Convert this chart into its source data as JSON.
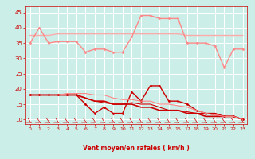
{
  "bg_color": "#cceee8",
  "grid_color": "#ffffff",
  "xlabel": "Vent moyen/en rafales ( km/h )",
  "xlabel_color": "#cc0000",
  "tick_color": "#cc0000",
  "xlim": [
    -0.5,
    23.5
  ],
  "ylim": [
    8.5,
    47
  ],
  "yticks": [
    10,
    15,
    20,
    25,
    30,
    35,
    40,
    45
  ],
  "xticks": [
    0,
    1,
    2,
    3,
    4,
    5,
    6,
    7,
    8,
    9,
    10,
    11,
    12,
    13,
    14,
    15,
    16,
    17,
    18,
    19,
    20,
    21,
    22,
    23
  ],
  "lines": [
    {
      "y": [
        37.5,
        37.5,
        37.5,
        38,
        38,
        38,
        38,
        38,
        38,
        38,
        38,
        38,
        38,
        38,
        38,
        38,
        38,
        37.5,
        37.5,
        37.5,
        37.5,
        37.5,
        37.5,
        37.5
      ],
      "color": "#ffaaaa",
      "lw": 1.0,
      "marker": null
    },
    {
      "y": [
        35,
        40,
        35,
        35.5,
        35.5,
        35.5,
        32,
        33,
        33,
        32,
        32,
        37,
        44,
        44,
        43,
        43,
        43,
        35,
        35,
        35,
        34,
        27,
        33,
        33
      ],
      "color": "#ff8888",
      "lw": 1.0,
      "marker": "D",
      "ms": 1.5
    },
    {
      "y": [
        18,
        18,
        18,
        18,
        18,
        18,
        15,
        12,
        14,
        12,
        12,
        19,
        16,
        21,
        21,
        16,
        16,
        15,
        13,
        12,
        12,
        11,
        11,
        10
      ],
      "color": "#cc0000",
      "lw": 1.0,
      "marker": "D",
      "ms": 1.5
    },
    {
      "y": [
        18,
        18,
        18,
        18,
        18,
        18,
        17,
        16,
        16,
        15,
        15,
        15,
        14,
        14,
        13,
        13,
        13,
        12,
        12,
        11,
        11,
        11,
        11,
        10
      ],
      "color": "#cc0000",
      "lw": 1.2,
      "marker": null
    },
    {
      "y": [
        18,
        18,
        18,
        18,
        18,
        18,
        17,
        16,
        15.5,
        15,
        15,
        15.5,
        15,
        15,
        14,
        13,
        13,
        12.5,
        12,
        12,
        11.5,
        11,
        11,
        10
      ],
      "color": "#cc0000",
      "lw": 0.8,
      "marker": null
    },
    {
      "y": [
        18,
        18,
        18,
        18,
        18.5,
        18.5,
        18.5,
        18,
        18,
        17,
        16.5,
        16.5,
        16,
        16,
        15,
        15,
        14.5,
        14,
        13,
        12,
        11.5,
        11,
        11,
        10
      ],
      "color": "#ff8888",
      "lw": 0.8,
      "marker": null
    }
  ]
}
